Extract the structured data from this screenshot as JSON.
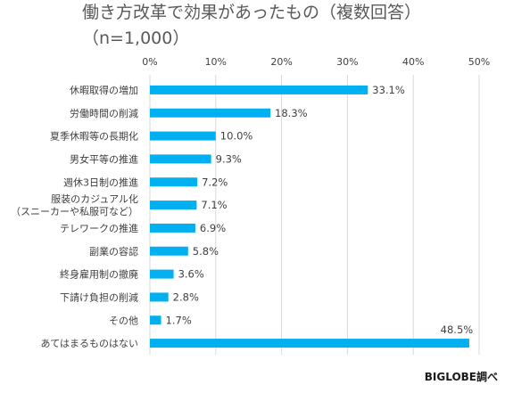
{
  "chart_data": {
    "type": "bar",
    "orientation": "horizontal",
    "title_lines": [
      "働き方改革で効果があったもの（複数回答）",
      "（n=1,000）"
    ],
    "categories": [
      [
        "休暇取得の増加"
      ],
      [
        "労働時間の削減"
      ],
      [
        "夏季休暇等の長期化"
      ],
      [
        "男女平等の推進"
      ],
      [
        "週休3日制の推進"
      ],
      [
        "服装のカジュアル化",
        "（スニーカーや私服可など）"
      ],
      [
        "テレワークの推進"
      ],
      [
        "副業の容認"
      ],
      [
        "終身雇用制の撤廃"
      ],
      [
        "下請け負担の削減"
      ],
      [
        "その他"
      ],
      [
        "あてはまるものはない"
      ]
    ],
    "values": [
      33.1,
      18.3,
      10.0,
      9.3,
      7.2,
      7.1,
      6.9,
      5.8,
      3.6,
      2.8,
      1.7,
      48.5
    ],
    "value_labels": [
      "33.1%",
      "18.3%",
      "10.0%",
      "9.3%",
      "7.2%",
      "7.1%",
      "6.9%",
      "5.8%",
      "3.6%",
      "2.8%",
      "1.7%",
      "48.5%"
    ],
    "xlim": [
      0,
      50
    ],
    "xticks": [
      0,
      10,
      20,
      30,
      40,
      50
    ],
    "xtick_labels": [
      "0%",
      "10%",
      "20%",
      "30%",
      "40%",
      "50%"
    ],
    "tick_position": "top",
    "grid": true,
    "bar_color": "#00b0f0",
    "grid_color": "#d9d9d9",
    "credit": "BIGLOBE調べ"
  }
}
